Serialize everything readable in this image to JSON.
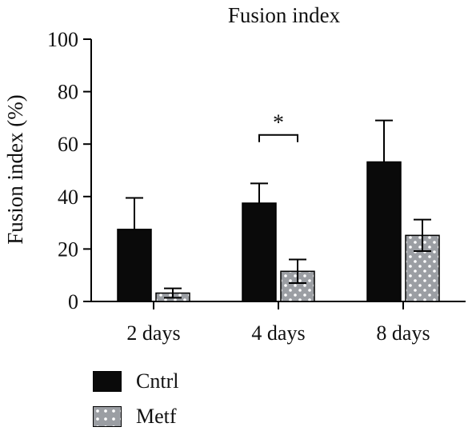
{
  "chart_data": {
    "type": "bar",
    "title": "Fusion index",
    "ylabel": "Fusion index (%)",
    "xlabel": "",
    "ylim": [
      0,
      100
    ],
    "yticks": [
      0,
      20,
      40,
      60,
      80,
      100
    ],
    "categories": [
      "2 days",
      "4 days",
      "8 days"
    ],
    "series": [
      {
        "name": "Cntrl",
        "color": "#0a0a0a",
        "pattern": "solid",
        "values": [
          27.5,
          37.5,
          53.2
        ],
        "error": [
          12,
          7.5,
          15.8
        ]
      },
      {
        "name": "Metf",
        "color": "#9b9ea3",
        "pattern": "dotted",
        "values": [
          3.2,
          11.5,
          25.2
        ],
        "error": [
          1.8,
          4.5,
          6
        ]
      }
    ],
    "annotations": [
      {
        "text": "*",
        "category": "4 days"
      }
    ],
    "grid": false,
    "legend_position": "bottom-left"
  }
}
